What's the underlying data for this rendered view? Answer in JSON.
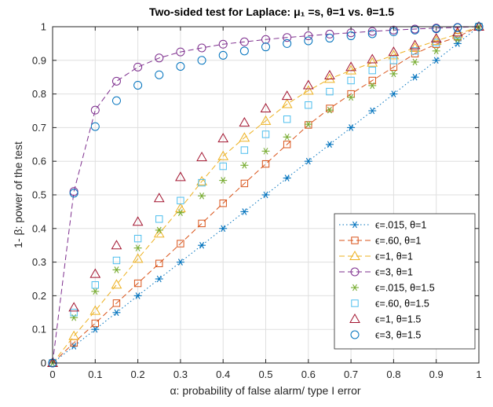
{
  "chart_data": {
    "type": "line",
    "title": "Two-sided test for Laplace: μ₁ =s, θ=1 vs. θ=1.5",
    "xlabel": "α: probability of false alarm/ type I error",
    "ylabel": "1- β: power of the test",
    "xlim": [
      0,
      1
    ],
    "ylim": [
      0,
      1
    ],
    "xticks": [
      0,
      0.1,
      0.2,
      0.3,
      0.4,
      0.5,
      0.6,
      0.7,
      0.8,
      0.9,
      1
    ],
    "xtick_labels": [
      "0",
      "0.1",
      "0.2",
      "0.3",
      "0.4",
      "0.5",
      "0.6",
      "0.7",
      "0.8",
      "0.9",
      "1"
    ],
    "yticks": [
      0,
      0.1,
      0.2,
      0.3,
      0.4,
      0.5,
      0.6,
      0.7,
      0.8,
      0.9,
      1
    ],
    "ytick_labels": [
      "0",
      "0.1",
      "0.2",
      "0.3",
      "0.4",
      "0.5",
      "0.6",
      "0.7",
      "0.8",
      "0.9",
      "1"
    ],
    "grid": true,
    "legend_position": "bottom-right",
    "x": [
      0,
      0.05,
      0.1,
      0.15,
      0.2,
      0.25,
      0.3,
      0.35,
      0.4,
      0.45,
      0.5,
      0.55,
      0.6,
      0.65,
      0.7,
      0.75,
      0.8,
      0.85,
      0.9,
      0.95,
      1
    ],
    "series": [
      {
        "name": "ϵ=.015, θ=1",
        "marker": "asterisk",
        "line": "dotted",
        "color": "#0072BD",
        "values": [
          0,
          0.05,
          0.1,
          0.15,
          0.2,
          0.25,
          0.3,
          0.35,
          0.4,
          0.45,
          0.5,
          0.55,
          0.6,
          0.65,
          0.7,
          0.75,
          0.8,
          0.85,
          0.9,
          0.95,
          1
        ]
      },
      {
        "name": "ϵ=.60, θ=1",
        "marker": "square",
        "line": "dashed",
        "color": "#D95319",
        "values": [
          0,
          0.06,
          0.118,
          0.178,
          0.237,
          0.296,
          0.355,
          0.415,
          0.475,
          0.534,
          0.592,
          0.65,
          0.708,
          0.757,
          0.8,
          0.84,
          0.88,
          0.92,
          0.948,
          0.97,
          1
        ]
      },
      {
        "name": "ϵ=1, θ=1",
        "marker": "triangle",
        "line": "dashed",
        "color": "#EDB120",
        "values": [
          0,
          0.08,
          0.155,
          0.233,
          0.31,
          0.385,
          0.46,
          0.54,
          0.615,
          0.67,
          0.72,
          0.77,
          0.81,
          0.845,
          0.87,
          0.893,
          0.915,
          0.937,
          0.958,
          0.978,
          1
        ]
      },
      {
        "name": "ϵ=3, θ=1",
        "marker": "circle",
        "line": "dashed",
        "color": "#7E2F8E",
        "values": [
          0,
          0.51,
          0.752,
          0.838,
          0.88,
          0.907,
          0.925,
          0.937,
          0.948,
          0.955,
          0.962,
          0.968,
          0.973,
          0.978,
          0.982,
          0.986,
          0.99,
          0.993,
          0.996,
          0.998,
          1
        ]
      },
      {
        "name": "ϵ=.015, θ=1.5",
        "marker": "asterisk",
        "line": "none",
        "color": "#77AC30",
        "values": [
          0,
          0.135,
          0.213,
          0.277,
          0.342,
          0.395,
          0.447,
          0.497,
          0.543,
          0.588,
          0.63,
          0.672,
          0.71,
          0.752,
          0.79,
          0.825,
          0.86,
          0.895,
          0.928,
          0.962,
          1
        ]
      },
      {
        "name": "ϵ=.60, θ=1.5",
        "marker": "square",
        "line": "none",
        "color": "#4DBEEE",
        "values": [
          0,
          0.15,
          0.232,
          0.305,
          0.37,
          0.428,
          0.483,
          0.536,
          0.585,
          0.633,
          0.68,
          0.725,
          0.767,
          0.807,
          0.84,
          0.87,
          0.9,
          0.928,
          0.953,
          0.976,
          1
        ]
      },
      {
        "name": "ϵ=1, θ=1.5",
        "marker": "triangle",
        "line": "none",
        "color": "#A2142F",
        "values": [
          0,
          0.165,
          0.265,
          0.35,
          0.42,
          0.49,
          0.553,
          0.612,
          0.668,
          0.715,
          0.757,
          0.794,
          0.826,
          0.855,
          0.88,
          0.903,
          0.925,
          0.945,
          0.965,
          0.983,
          1
        ]
      },
      {
        "name": "ϵ=3, θ=1.5",
        "marker": "circle",
        "line": "none",
        "color": "#0072BD",
        "values": [
          0,
          0.505,
          0.703,
          0.78,
          0.826,
          0.857,
          0.882,
          0.9,
          0.915,
          0.928,
          0.94,
          0.95,
          0.958,
          0.966,
          0.973,
          0.979,
          0.985,
          0.99,
          0.994,
          0.997,
          1
        ]
      }
    ]
  }
}
